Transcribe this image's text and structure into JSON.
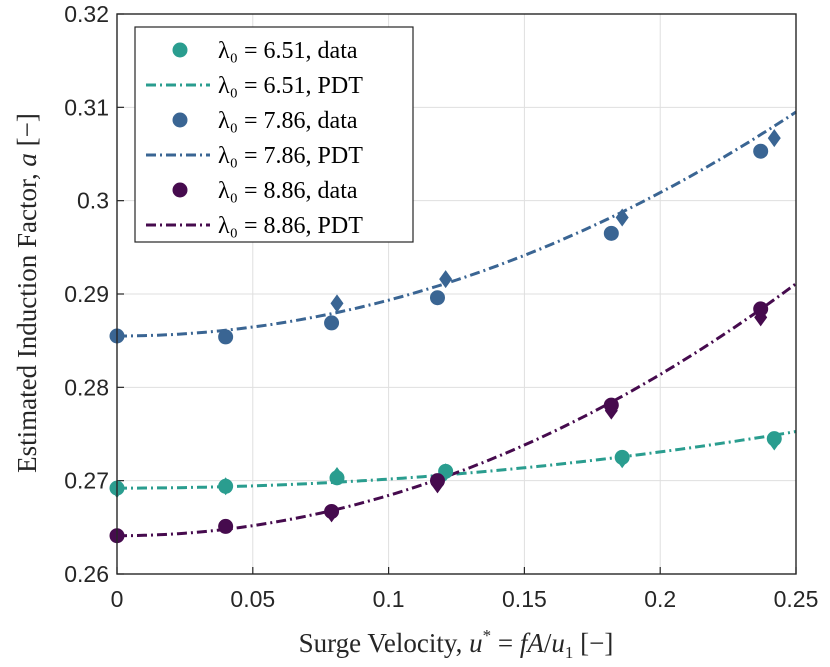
{
  "chart_data": {
    "type": "scatter",
    "title": "",
    "xlabel": "Surge Velocity, u* = fA/u₁ [−]",
    "ylabel": "Estimated Induction Factor, a [−]",
    "xlim": [
      0,
      0.25
    ],
    "ylim": [
      0.26,
      0.32
    ],
    "xticks": [
      0,
      0.05,
      0.1,
      0.15,
      0.2,
      0.25
    ],
    "xtick_labels": [
      "0",
      "0.05",
      "0.1",
      "0.15",
      "0.2",
      "0.25"
    ],
    "yticks": [
      0.26,
      0.27,
      0.28,
      0.29,
      0.3,
      0.31,
      0.32
    ],
    "ytick_labels": [
      "0.26",
      "0.27",
      "0.28",
      "0.29",
      "0.3",
      "0.31",
      "0.32"
    ],
    "grid": true,
    "legend_position": "top-left",
    "series": [
      {
        "name": "λ₀ = 6.51",
        "color": "#2a9d8f",
        "legend_data": "λ₀ = 6.51, data",
        "legend_fit": "λ₀ = 6.51, PDT",
        "circles": [
          [
            0,
            0.2692
          ],
          [
            0.04,
            0.2694
          ],
          [
            0.081,
            0.2703
          ],
          [
            0.121,
            0.271
          ],
          [
            0.186,
            0.2725
          ],
          [
            0.242,
            0.2745
          ]
        ],
        "diamonds": [
          [
            0,
            0.2691
          ],
          [
            0.04,
            0.2694
          ],
          [
            0.081,
            0.2705
          ],
          [
            0.121,
            0.2709
          ],
          [
            0.186,
            0.2723
          ],
          [
            0.242,
            0.2742
          ]
        ],
        "fit": {
          "a0": 0.2692,
          "k": 0.097
        }
      },
      {
        "name": "λ₀ = 7.86",
        "color": "#3a6593",
        "legend_data": "λ₀ = 7.86, data",
        "legend_fit": "λ₀ = 7.86, PDT",
        "circles": [
          [
            0,
            0.2855
          ],
          [
            0.04,
            0.2854
          ],
          [
            0.079,
            0.2869
          ],
          [
            0.118,
            0.2896
          ],
          [
            0.182,
            0.2965
          ],
          [
            0.237,
            0.3053
          ]
        ],
        "diamonds": [
          [
            0.081,
            0.289
          ],
          [
            0.121,
            0.2916
          ],
          [
            0.186,
            0.2982
          ],
          [
            0.242,
            0.3067
          ]
        ],
        "fit": {
          "a0": 0.2855,
          "k": 0.384
        }
      },
      {
        "name": "λ₀ = 8.86",
        "color": "#460b4e",
        "legend_data": "λ₀ = 8.86, data",
        "legend_fit": "λ₀ = 8.86, PDT",
        "circles": [
          [
            0,
            0.2641
          ],
          [
            0.04,
            0.2651
          ],
          [
            0.079,
            0.2667
          ],
          [
            0.118,
            0.27
          ],
          [
            0.182,
            0.2781
          ],
          [
            0.237,
            0.2884
          ]
        ],
        "diamonds": [
          [
            0.079,
            0.2665
          ],
          [
            0.118,
            0.2696
          ],
          [
            0.182,
            0.2775
          ],
          [
            0.237,
            0.2875
          ]
        ],
        "fit": {
          "a0": 0.2641,
          "k": 0.432
        }
      }
    ]
  }
}
